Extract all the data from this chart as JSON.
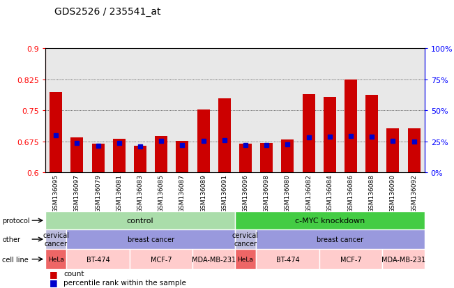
{
  "title": "GDS2526 / 235541_at",
  "samples": [
    "GSM136095",
    "GSM136097",
    "GSM136079",
    "GSM136081",
    "GSM136083",
    "GSM136085",
    "GSM136087",
    "GSM136089",
    "GSM136091",
    "GSM136096",
    "GSM136098",
    "GSM136080",
    "GSM136082",
    "GSM136084",
    "GSM136086",
    "GSM136088",
    "GSM136090",
    "GSM136092"
  ],
  "bar_heights": [
    0.795,
    0.685,
    0.67,
    0.681,
    0.665,
    0.688,
    0.676,
    0.753,
    0.779,
    0.67,
    0.672,
    0.68,
    0.79,
    0.782,
    0.825,
    0.788,
    0.706,
    0.706
  ],
  "blue_dots": [
    0.69,
    0.672,
    0.665,
    0.671,
    0.663,
    0.676,
    0.667,
    0.676,
    0.678,
    0.666,
    0.667,
    0.668,
    0.685,
    0.686,
    0.688,
    0.686,
    0.676,
    0.675
  ],
  "ymin": 0.6,
  "ymax": 0.9,
  "yticks_left": [
    0.6,
    0.675,
    0.75,
    0.825,
    0.9
  ],
  "yticks_right_vals": [
    0.6,
    0.675,
    0.75,
    0.825,
    0.9
  ],
  "yticks_right_labels": [
    "0%",
    "25%",
    "50%",
    "75%",
    "100%"
  ],
  "bar_color": "#cc0000",
  "dot_color": "#0000cc",
  "bg_color": "#e8e8e8",
  "protocol_labels": [
    "control",
    "c-MYC knockdown"
  ],
  "protocol_color_control": "#aaddaa",
  "protocol_color_knockdown": "#44cc44",
  "other_color_cervical": "#bbbbdd",
  "other_color_breast": "#9999dd",
  "cell_line_groups": [
    {
      "label": "HeLa",
      "start": 0,
      "end": 0,
      "color": "#ee6666"
    },
    {
      "label": "BT-474",
      "start": 1,
      "end": 3,
      "color": "#ffcccc"
    },
    {
      "label": "MCF-7",
      "start": 4,
      "end": 6,
      "color": "#ffcccc"
    },
    {
      "label": "MDA-MB-231",
      "start": 7,
      "end": 8,
      "color": "#ffcccc"
    },
    {
      "label": "HeLa",
      "start": 9,
      "end": 9,
      "color": "#ee6666"
    },
    {
      "label": "BT-474",
      "start": 10,
      "end": 12,
      "color": "#ffcccc"
    },
    {
      "label": "MCF-7",
      "start": 13,
      "end": 15,
      "color": "#ffcccc"
    },
    {
      "label": "MDA-MB-231",
      "start": 16,
      "end": 17,
      "color": "#ffcccc"
    }
  ],
  "legend_red": "count",
  "legend_blue": "percentile rank within the sample"
}
